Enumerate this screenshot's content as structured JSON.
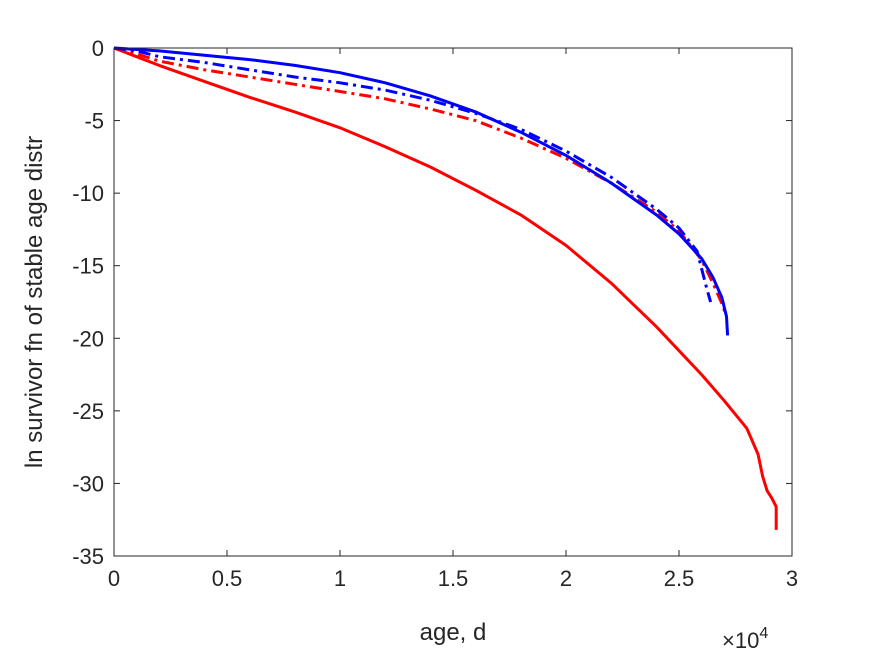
{
  "chart_data": {
    "type": "line",
    "title": "",
    "xlabel": "age, d",
    "ylabel": "ln survivor fn of stable age distr",
    "x_exponent_label": "×10",
    "x_exponent_power": "4",
    "xlim": [
      0,
      30000
    ],
    "ylim": [
      -35,
      0
    ],
    "x_ticks": [
      0,
      5000,
      10000,
      15000,
      20000,
      25000,
      30000
    ],
    "x_tick_labels": [
      "0",
      "0.5",
      "1",
      "1.5",
      "2",
      "2.5",
      "3"
    ],
    "y_ticks": [
      0,
      -5,
      -10,
      -15,
      -20,
      -25,
      -30,
      -35
    ],
    "y_tick_labels": [
      "0",
      "-5",
      "-10",
      "-15",
      "-20",
      "-25",
      "-30",
      "-35"
    ],
    "grid": false,
    "legend": "none",
    "series": [
      {
        "color": "#ff0000",
        "style": "solid",
        "x": [
          0,
          1000,
          2000,
          4000,
          6000,
          8000,
          10000,
          12000,
          14000,
          16000,
          18000,
          20000,
          22000,
          24000,
          26000,
          27000,
          28000,
          28500,
          28700,
          28900,
          29100,
          29300,
          29300
        ],
        "y": [
          0,
          -0.6,
          -1.2,
          -2.3,
          -3.4,
          -4.4,
          -5.5,
          -6.8,
          -8.2,
          -9.8,
          -11.5,
          -13.6,
          -16.2,
          -19.2,
          -22.5,
          -24.3,
          -26.2,
          -28.0,
          -29.5,
          -30.5,
          -31.0,
          -31.6,
          -33.2
        ]
      },
      {
        "color": "#ff0000",
        "style": "dashdot",
        "x": [
          0,
          1000,
          2000,
          4000,
          6000,
          8000,
          10000,
          12000,
          14000,
          16000,
          18000,
          20000,
          22000,
          24000,
          25000,
          26000,
          26500,
          26900,
          27100
        ],
        "y": [
          0,
          -0.4,
          -0.9,
          -1.5,
          -2.0,
          -2.5,
          -3.0,
          -3.5,
          -4.2,
          -5.0,
          -6.2,
          -7.6,
          -9.3,
          -11.3,
          -12.6,
          -14.6,
          -16.2,
          -17.6,
          -18.5
        ]
      },
      {
        "color": "#0000ff",
        "style": "dashdot",
        "x": [
          0,
          1000,
          2000,
          4000,
          6000,
          8000,
          10000,
          12000,
          14000,
          16000,
          18000,
          20000,
          22000,
          24000,
          25000,
          25800,
          26000,
          26200,
          26400
        ],
        "y": [
          0,
          -0.2,
          -0.6,
          -1.0,
          -1.5,
          -2.0,
          -2.4,
          -2.9,
          -3.6,
          -4.5,
          -5.6,
          -7.1,
          -8.9,
          -11.1,
          -12.4,
          -14.0,
          -15.2,
          -16.4,
          -17.5
        ]
      },
      {
        "color": "#0000ff",
        "style": "solid",
        "x": [
          0,
          1000,
          2000,
          4000,
          6000,
          8000,
          10000,
          12000,
          14000,
          16000,
          18000,
          20000,
          22000,
          24000,
          25000,
          26000,
          26500,
          26900,
          27100,
          27150
        ],
        "y": [
          0,
          -0.1,
          -0.2,
          -0.5,
          -0.8,
          -1.2,
          -1.7,
          -2.4,
          -3.3,
          -4.4,
          -5.8,
          -7.4,
          -9.3,
          -11.5,
          -12.8,
          -14.5,
          -15.8,
          -17.2,
          -18.5,
          -19.8
        ]
      }
    ]
  }
}
